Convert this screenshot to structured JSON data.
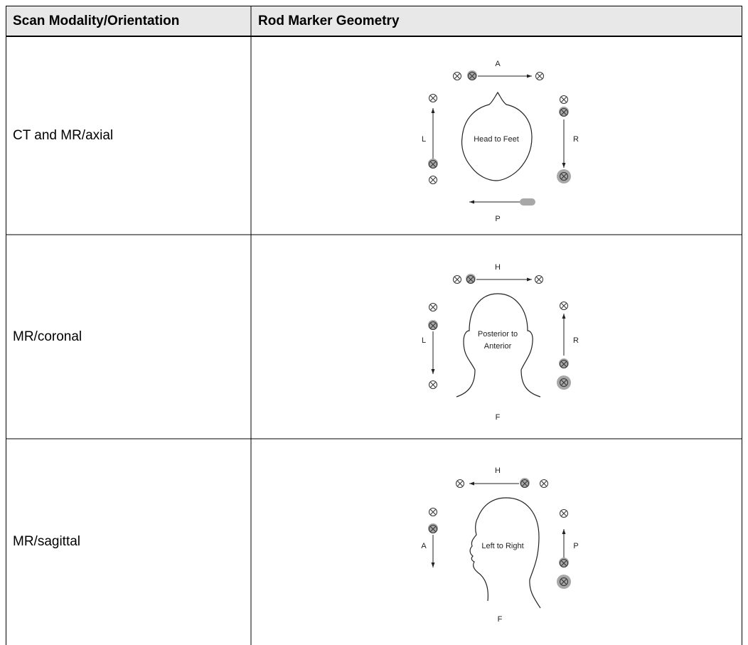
{
  "table": {
    "header": [
      "Scan Modality/Orientation",
      "Rod Marker Geometry"
    ],
    "rows": [
      {
        "label": "CT and MR/axial",
        "diagram": {
          "top": "A",
          "left": "L",
          "right": "R",
          "bottom": "P",
          "center": [
            "Head to Feet"
          ]
        }
      },
      {
        "label": "MR/coronal",
        "diagram": {
          "top": "H",
          "left": "L",
          "right": "R",
          "bottom": "F",
          "center": [
            "Posterior to",
            "Anterior"
          ]
        }
      },
      {
        "label": "MR/sagittal",
        "diagram": {
          "top": "H",
          "left": "A",
          "right": "P",
          "bottom": "F",
          "center": [
            "Left to Right"
          ]
        }
      }
    ]
  }
}
